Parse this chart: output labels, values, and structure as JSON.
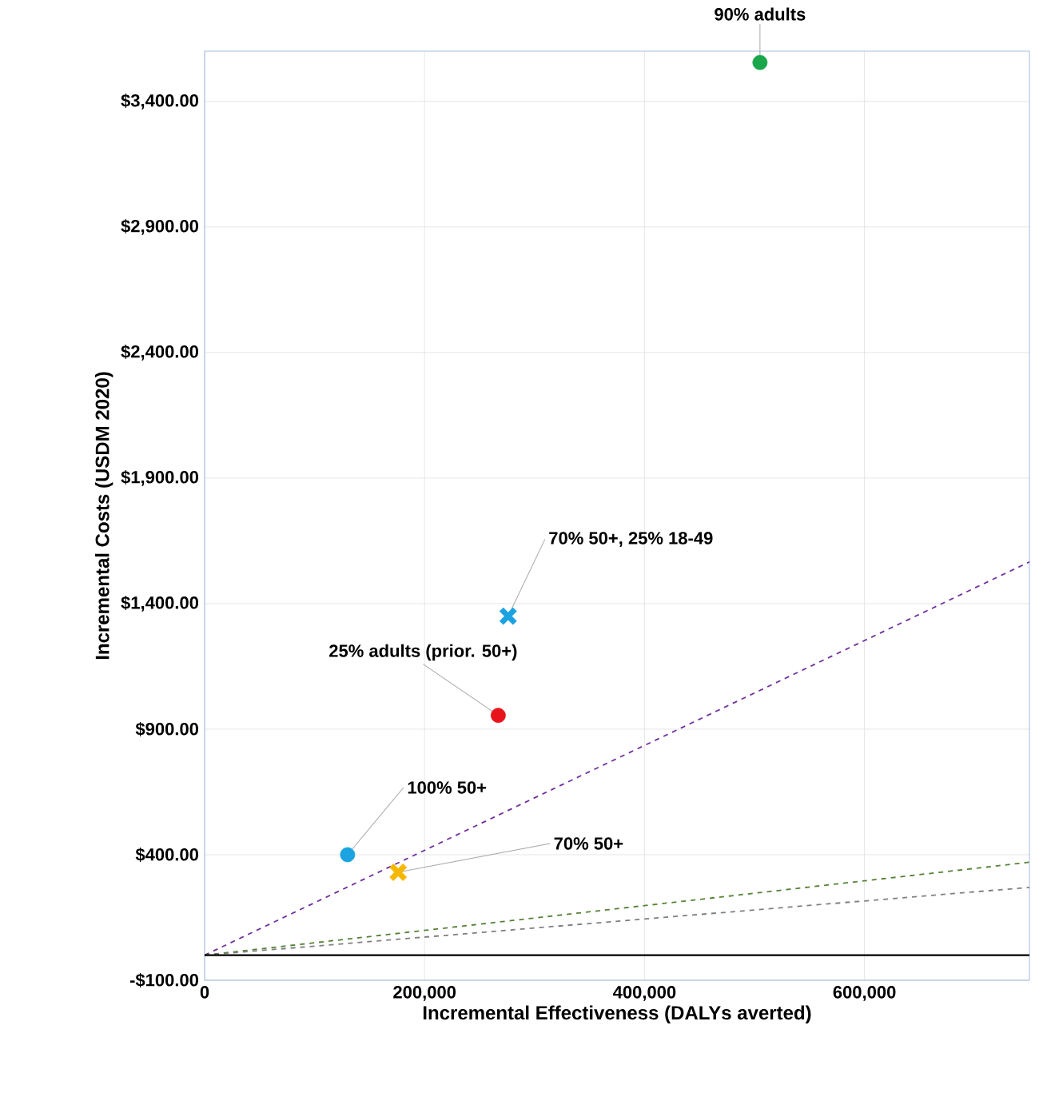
{
  "chart_data": {
    "type": "scatter",
    "xlabel": "Incremental Effectiveness (DALYs averted)",
    "ylabel": "Incremental Costs (USDM 2020)",
    "xlim": [
      0,
      750000
    ],
    "ylim": [
      -100,
      3600
    ],
    "xticks": [
      0,
      {
        "value": 200000,
        "label": "200,000"
      },
      {
        "value": 400000,
        "label": "400,000"
      },
      {
        "value": 600000,
        "label": "600,000"
      }
    ],
    "yticks": [
      {
        "value": -100,
        "label": "-$100.00"
      },
      {
        "value": 400,
        "label": "$400.00"
      },
      {
        "value": 900,
        "label": "$900.00"
      },
      {
        "value": 1400,
        "label": "$1,400.00"
      },
      {
        "value": 1900,
        "label": "$1,900.00"
      },
      {
        "value": 2400,
        "label": "$2,400.00"
      },
      {
        "value": 2900,
        "label": "$2,900.00"
      },
      {
        "value": 3400,
        "label": "$3,400.00"
      }
    ],
    "grid": true,
    "ref_lines": [
      {
        "axis": "y",
        "value": 0,
        "color": "#000000"
      }
    ],
    "series": [
      {
        "name": "90% adults",
        "marker": "circle",
        "color": "#1aa64a",
        "x": [
          505000
        ],
        "values": [
          3555
        ]
      },
      {
        "name": "70% 50+, 25% 18-49",
        "marker": "cross",
        "color": "#1aa3e0",
        "x": [
          276000
        ],
        "values": [
          1350
        ]
      },
      {
        "name": "25% adults (prior. 50+)",
        "marker": "circle",
        "color": "#e8141c",
        "x": [
          267000
        ],
        "values": [
          955
        ]
      },
      {
        "name": "100% 50+",
        "marker": "circle",
        "color": "#1aa3e0",
        "x": [
          130000
        ],
        "values": [
          400
        ]
      },
      {
        "name": "70% 50+",
        "marker": "cross",
        "color": "#f5b800",
        "x": [
          176000
        ],
        "values": [
          330
        ]
      },
      {
        "type": "line",
        "line_style": "dashed",
        "marker": "none",
        "color": "#7030a0",
        "x": [
          0,
          750000
        ],
        "values": [
          0,
          1566
        ]
      },
      {
        "type": "line",
        "line_style": "dashed",
        "marker": "none",
        "color": "#548235",
        "x": [
          0,
          750000
        ],
        "values": [
          0,
          370
        ]
      },
      {
        "type": "line",
        "line_style": "dashed",
        "marker": "none",
        "color": "#7f7f7f",
        "x": [
          0,
          750000
        ],
        "values": [
          0,
          270
        ]
      }
    ]
  }
}
